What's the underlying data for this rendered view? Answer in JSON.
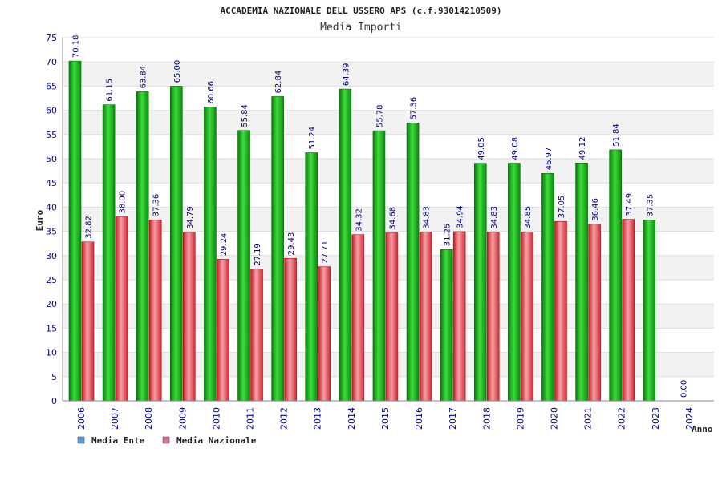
{
  "chart_data": {
    "type": "bar",
    "title": "ACCADEMIA NAZIONALE DELL USSERO APS (c.f.93014210509)",
    "subtitle": "Media Importi",
    "ylabel": "Euro",
    "xlabel": "Anno",
    "ylim": [
      0,
      75
    ],
    "ytick_step": 5,
    "grid": true,
    "legend_position": "bottom-left",
    "categories": [
      "2006",
      "2007",
      "2008",
      "2009",
      "2010",
      "2011",
      "2012",
      "2013",
      "2014",
      "2015",
      "2016",
      "2017",
      "2018",
      "2019",
      "2020",
      "2021",
      "2022",
      "2023",
      "2024"
    ],
    "series": [
      {
        "name": "Media Ente",
        "color": "#16b016",
        "legend_color": "#5b9bd5",
        "values": [
          70.18,
          61.15,
          63.84,
          65.0,
          60.66,
          55.84,
          62.84,
          51.24,
          64.39,
          55.78,
          57.36,
          31.25,
          49.05,
          49.08,
          46.97,
          49.12,
          51.84,
          37.35,
          0.0
        ],
        "labels": [
          "70.18",
          "61.15",
          "63.84",
          "65.00",
          "60.66",
          "55.84",
          "62.84",
          "51.24",
          "64.39",
          "55.78",
          "57.36",
          "31.25",
          "49.05",
          "49.08",
          "46.97",
          "49.12",
          "51.84",
          "37.35",
          "0.00"
        ]
      },
      {
        "name": "Media Nazionale",
        "color": "#e8404a",
        "legend_color": "#e070a0",
        "values": [
          32.82,
          38.0,
          37.36,
          34.79,
          29.24,
          27.19,
          29.43,
          27.71,
          34.32,
          34.68,
          34.83,
          34.94,
          34.83,
          34.85,
          37.05,
          36.46,
          37.49,
          null,
          null
        ],
        "labels": [
          "32.82",
          "38.00",
          "37.36",
          "34.79",
          "29.24",
          "27.19",
          "29.43",
          "27.71",
          "34.32",
          "34.68",
          "34.83",
          "34.94",
          "34.83",
          "34.85",
          "37.05",
          "36.46",
          "37.49",
          null,
          null
        ]
      }
    ]
  }
}
